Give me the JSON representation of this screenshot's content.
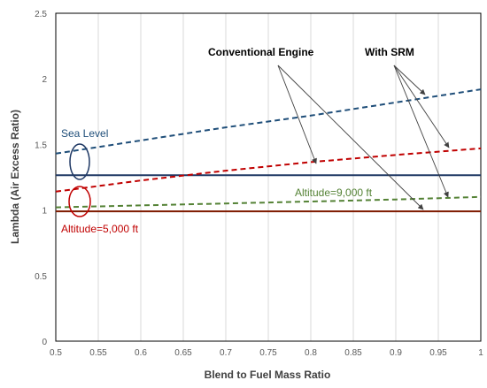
{
  "chart_data": {
    "type": "line",
    "xlabel": "Blend to Fuel Mass Ratio",
    "ylabel": "Lambda (Air Excess Ratio)",
    "xlim": [
      0.5,
      1.0
    ],
    "ylim": [
      0,
      2.5
    ],
    "xticks": [
      "0.5",
      "0.55",
      "0.6",
      "0.65",
      "0.7",
      "0.75",
      "0.8",
      "0.85",
      "0.9",
      "0.95",
      "1"
    ],
    "yticks": [
      "0",
      "0.5",
      "1",
      "1.5",
      "2",
      "2.5"
    ],
    "grid": "vertical",
    "series": [
      {
        "color": "#1f3864",
        "style": "solid",
        "x": [
          0.5,
          1.0
        ],
        "y": [
          1.265,
          1.265
        ]
      },
      {
        "color": "#1f4e79",
        "style": "dashed",
        "x": [
          0.5,
          0.6,
          0.7,
          0.8,
          0.9,
          1.0
        ],
        "y": [
          1.43,
          1.53,
          1.63,
          1.72,
          1.82,
          1.92
        ]
      },
      {
        "color": "#c00000",
        "style": "dashed",
        "x": [
          0.5,
          0.6,
          0.7,
          0.8,
          0.9,
          1.0
        ],
        "y": [
          1.14,
          1.225,
          1.3,
          1.365,
          1.42,
          1.47
        ]
      },
      {
        "color": "#7f1a00",
        "style": "solid",
        "x": [
          0.5,
          1.0
        ],
        "y": [
          0.99,
          0.99
        ]
      },
      {
        "color": "#548235",
        "style": "dashed",
        "x": [
          0.5,
          0.6,
          0.7,
          0.8,
          0.9,
          1.0
        ],
        "y": [
          1.02,
          1.035,
          1.05,
          1.065,
          1.08,
          1.1
        ]
      }
    ],
    "annotations": [
      {
        "text": "Sea Level",
        "color": "#1f4e79"
      },
      {
        "text": "Altitude=5,000 ft",
        "color": "#c00000"
      },
      {
        "text": "Altitude=9,000 ft",
        "color": "#548235"
      },
      {
        "text": "Conventional Engine",
        "color": "#000000"
      },
      {
        "text": "With SRM",
        "color": "#000000"
      }
    ]
  }
}
